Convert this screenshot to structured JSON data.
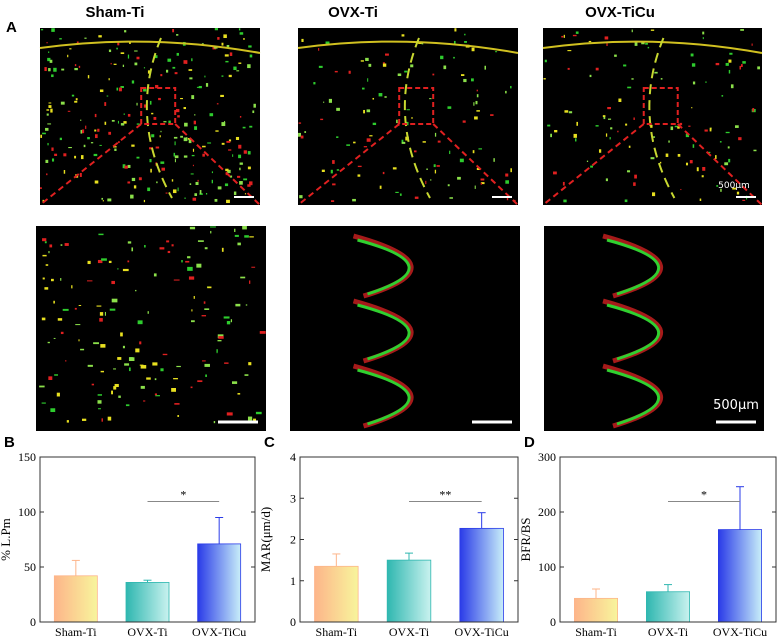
{
  "figure": {
    "panel_a": "A",
    "columns": [
      "Sham-Ti",
      "OVX-Ti",
      "OVX-TiCu"
    ],
    "scale_top": "500μm",
    "scale_bottom": "500μm"
  },
  "chart_data": [
    {
      "type": "bar",
      "panel": "B",
      "ylabel": "% L.Pm",
      "categories": [
        "Sham-Ti",
        "OVX-Ti",
        "OVX-TiCu"
      ],
      "values": [
        42,
        36,
        71
      ],
      "errors": [
        14,
        2,
        24
      ],
      "colors": [
        [
          "#fdb58a",
          "#f8f59c"
        ],
        [
          "#2fb7b0",
          "#c9f2ef"
        ],
        [
          "#2a3be8",
          "#c8eef9"
        ]
      ],
      "ylim": [
        0,
        150
      ],
      "yticks": [
        0,
        50,
        100,
        150
      ],
      "significance": [
        {
          "label": "*",
          "pair": [
            "OVX-Ti",
            "OVX-TiCu"
          ]
        }
      ]
    },
    {
      "type": "bar",
      "panel": "C",
      "ylabel": "MAR(μm/d)",
      "categories": [
        "Sham-Ti",
        "OVX-Ti",
        "OVX-TiCu"
      ],
      "values": [
        1.35,
        1.5,
        2.27
      ],
      "errors": [
        0.3,
        0.17,
        0.38
      ],
      "colors": [
        [
          "#fdb58a",
          "#f8f59c"
        ],
        [
          "#2fb7b0",
          "#c9f2ef"
        ],
        [
          "#2a3be8",
          "#c8eef9"
        ]
      ],
      "ylim": [
        0,
        4
      ],
      "yticks": [
        0,
        1,
        2,
        3,
        4
      ],
      "significance": [
        {
          "label": "**",
          "pair": [
            "OVX-Ti",
            "OVX-TiCu"
          ]
        }
      ]
    },
    {
      "type": "bar",
      "panel": "D",
      "ylabel": "BFR/BS",
      "categories": [
        "Sham-Ti",
        "OVX-Ti",
        "OVX-TiCu"
      ],
      "values": [
        43,
        55,
        168
      ],
      "errors": [
        17,
        13,
        78
      ],
      "colors": [
        [
          "#fdb58a",
          "#f8f59c"
        ],
        [
          "#2fb7b0",
          "#c9f2ef"
        ],
        [
          "#2a3be8",
          "#c8eef9"
        ]
      ],
      "ylim": [
        0,
        300
      ],
      "yticks": [
        0,
        100,
        200,
        300
      ],
      "significance": [
        {
          "label": "*",
          "pair": [
            "OVX-Ti",
            "OVX-TiCu"
          ]
        }
      ]
    }
  ]
}
